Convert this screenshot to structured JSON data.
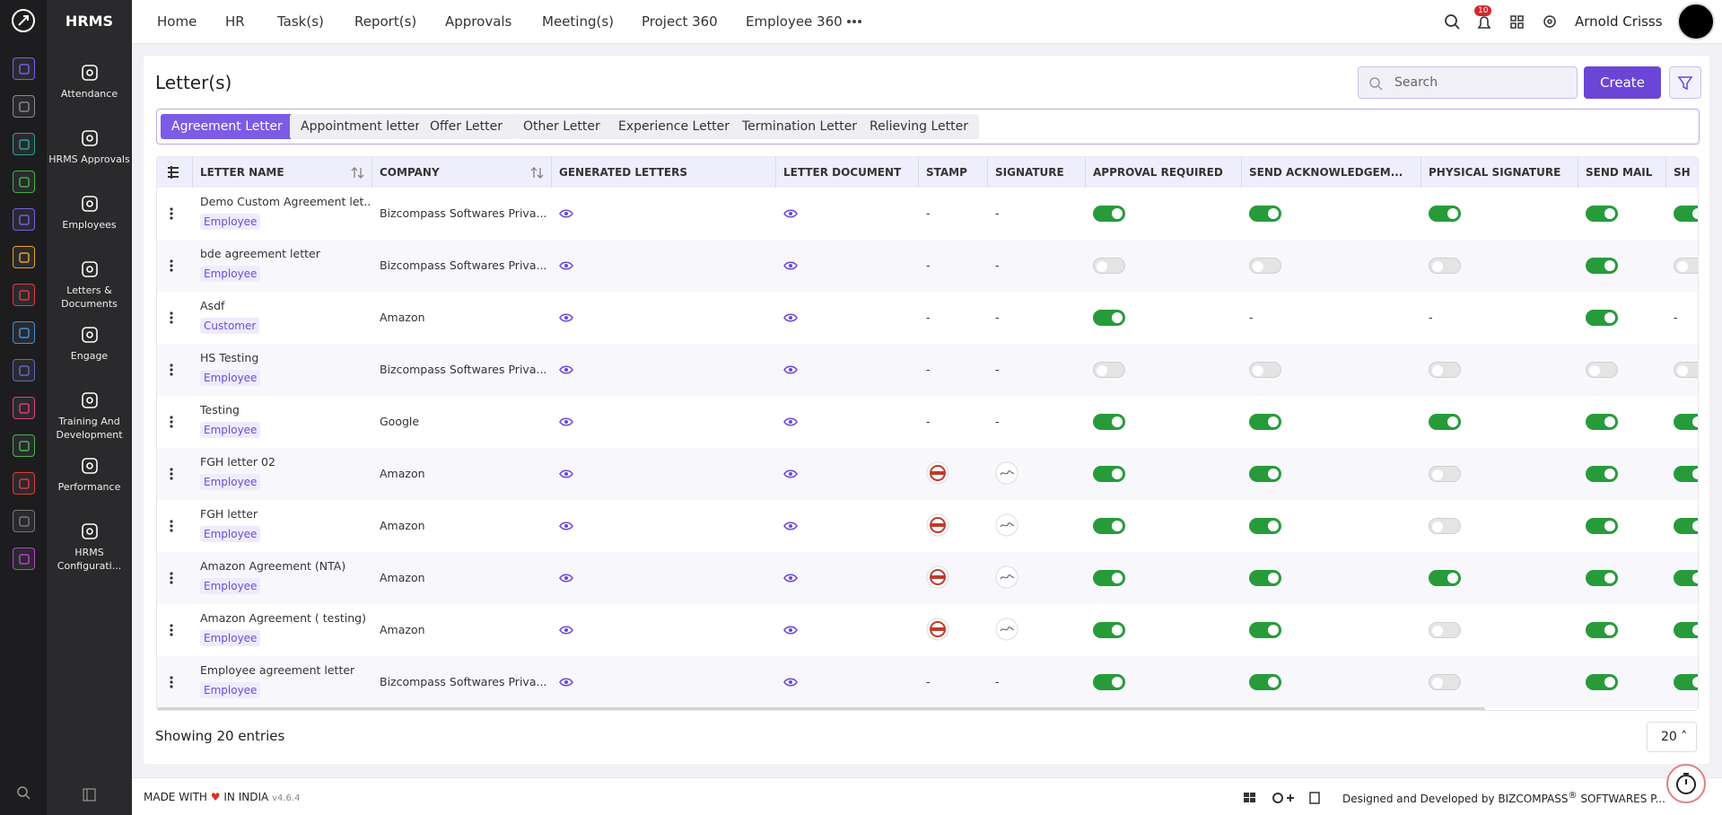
{
  "brand": "HRMS",
  "nav": [
    "Home",
    "HR",
    "Task(s)",
    "Report(s)",
    "Approvals",
    "Meeting(s)",
    "Project 360",
    "Employee 360"
  ],
  "user": {
    "name": "Arnold Crisss",
    "notifications": "10"
  },
  "sidebar": [
    "Attendance",
    "HRMS Approvals",
    "Employees",
    "Letters & Documents",
    "Engage",
    "Training And Development",
    "Performance",
    "HRMS Configurati..."
  ],
  "page": {
    "title": "Letter(s)",
    "search_placeholder": "Search",
    "create": "Create"
  },
  "tabs": [
    "Agreement Letter",
    "Appointment letter",
    "Offer Letter",
    "Other Letter",
    "Experience Letter",
    "Termination Letter",
    "Relieving Letter"
  ],
  "table": {
    "columns": [
      "LETTER NAME",
      "COMPANY",
      "GENERATED LETTERS",
      "LETTER DOCUMENT",
      "STAMP",
      "SIGNATURE",
      "APPROVAL REQUIRED",
      "SEND ACKNOWLEDGEM...",
      "PHYSICAL SIGNATURE",
      "SEND MAIL",
      "SH"
    ],
    "rows": [
      {
        "name": "Demo Custom Agreement let...",
        "type": "Employee",
        "company": "Bizcompass Softwares Priva...",
        "stamp": "-",
        "signature": "-",
        "toggles": [
          true,
          true,
          true,
          true,
          true
        ]
      },
      {
        "name": "bde agreement letter",
        "type": "Employee",
        "company": "Bizcompass Softwares Priva...",
        "stamp": "-",
        "signature": "-",
        "toggles": [
          false,
          false,
          false,
          true,
          false
        ]
      },
      {
        "name": "Asdf",
        "type": "Customer",
        "company": "Amazon",
        "stamp": "-",
        "signature": "-",
        "toggles": [
          true,
          "-",
          "-",
          true,
          "-"
        ]
      },
      {
        "name": "HS Testing",
        "type": "Employee",
        "company": "Bizcompass Softwares Priva...",
        "stamp": "-",
        "signature": "-",
        "toggles": [
          false,
          false,
          false,
          false,
          false
        ]
      },
      {
        "name": "Testing",
        "type": "Employee",
        "company": "Google",
        "stamp": "-",
        "signature": "-",
        "toggles": [
          true,
          true,
          true,
          true,
          true
        ]
      },
      {
        "name": "FGH letter 02",
        "type": "Employee",
        "company": "Amazon",
        "stamp": true,
        "signature": true,
        "toggles": [
          true,
          true,
          false,
          true,
          true
        ]
      },
      {
        "name": "FGH letter",
        "type": "Employee",
        "company": "Amazon",
        "stamp": true,
        "signature": true,
        "toggles": [
          true,
          true,
          false,
          true,
          true
        ]
      },
      {
        "name": "Amazon Agreement (NTA)",
        "type": "Employee",
        "company": "Amazon",
        "stamp": true,
        "signature": true,
        "toggles": [
          true,
          true,
          true,
          true,
          true
        ]
      },
      {
        "name": "Amazon Agreement ( testing)",
        "type": "Employee",
        "company": "Amazon",
        "stamp": true,
        "signature": true,
        "toggles": [
          true,
          true,
          false,
          true,
          true
        ]
      },
      {
        "name": "Employee agreement letter",
        "type": "Employee",
        "company": "Bizcompass Softwares Priva...",
        "stamp": "-",
        "signature": "-",
        "toggles": [
          true,
          true,
          false,
          true,
          true
        ]
      }
    ]
  },
  "pagination": {
    "summary": "Showing 20 entries",
    "page_size": "20"
  },
  "footer": {
    "made_with": "MADE WITH",
    "in_india": "IN INDIA",
    "version": "v4.6.4",
    "designed": "Designed and Developed by",
    "company": "BIZCOMPASS",
    "reg": "®",
    "company_rest": "SOFTWARES P..."
  }
}
